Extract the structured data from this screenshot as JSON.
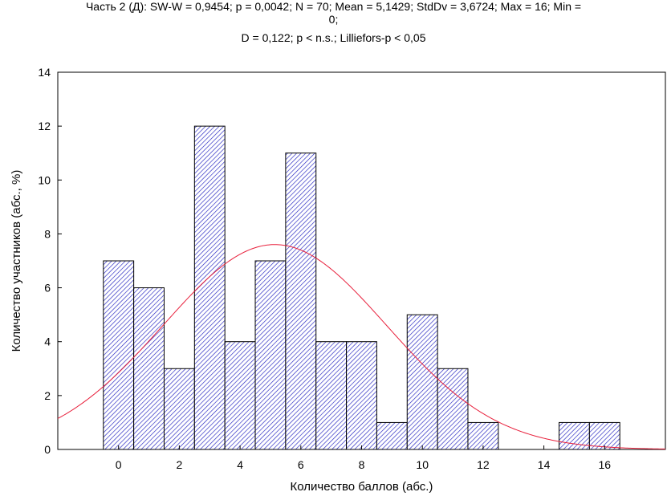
{
  "chart_data": {
    "type": "bar",
    "title_line1": "Часть 2 (Д):   SW-W = 0,9454; p = 0,0042;  N = 70; Mean = 5,1429; StdDv = 3,6724; Max = 16; Min =",
    "title_line1_wrap": "0;",
    "title_line2": "D = 0,122; p < n.s.; Lilliefors-p < 0,05",
    "xlabel": "Количество баллов (абс.)",
    "ylabel": "Количество участников (абс., %)",
    "x": [
      0,
      1,
      2,
      3,
      4,
      5,
      6,
      7,
      8,
      9,
      10,
      11,
      12,
      13,
      14,
      15,
      16
    ],
    "values": [
      7,
      6,
      3,
      12,
      4,
      7,
      11,
      4,
      4,
      1,
      5,
      3,
      1,
      0,
      0,
      1,
      1
    ],
    "xticks": [
      "0",
      "2",
      "4",
      "6",
      "8",
      "10",
      "12",
      "14",
      "16"
    ],
    "yticks": [
      "0",
      "2",
      "4",
      "6",
      "8",
      "10",
      "12",
      "14"
    ],
    "xlim": [
      -2,
      18
    ],
    "ylim": [
      0,
      14
    ],
    "normal_fit": {
      "n": 70,
      "mean": 5.1429,
      "sd": 3.6724,
      "bin_width": 1
    },
    "bar_color": "#2020c0",
    "curve_color": "#e8203c"
  }
}
